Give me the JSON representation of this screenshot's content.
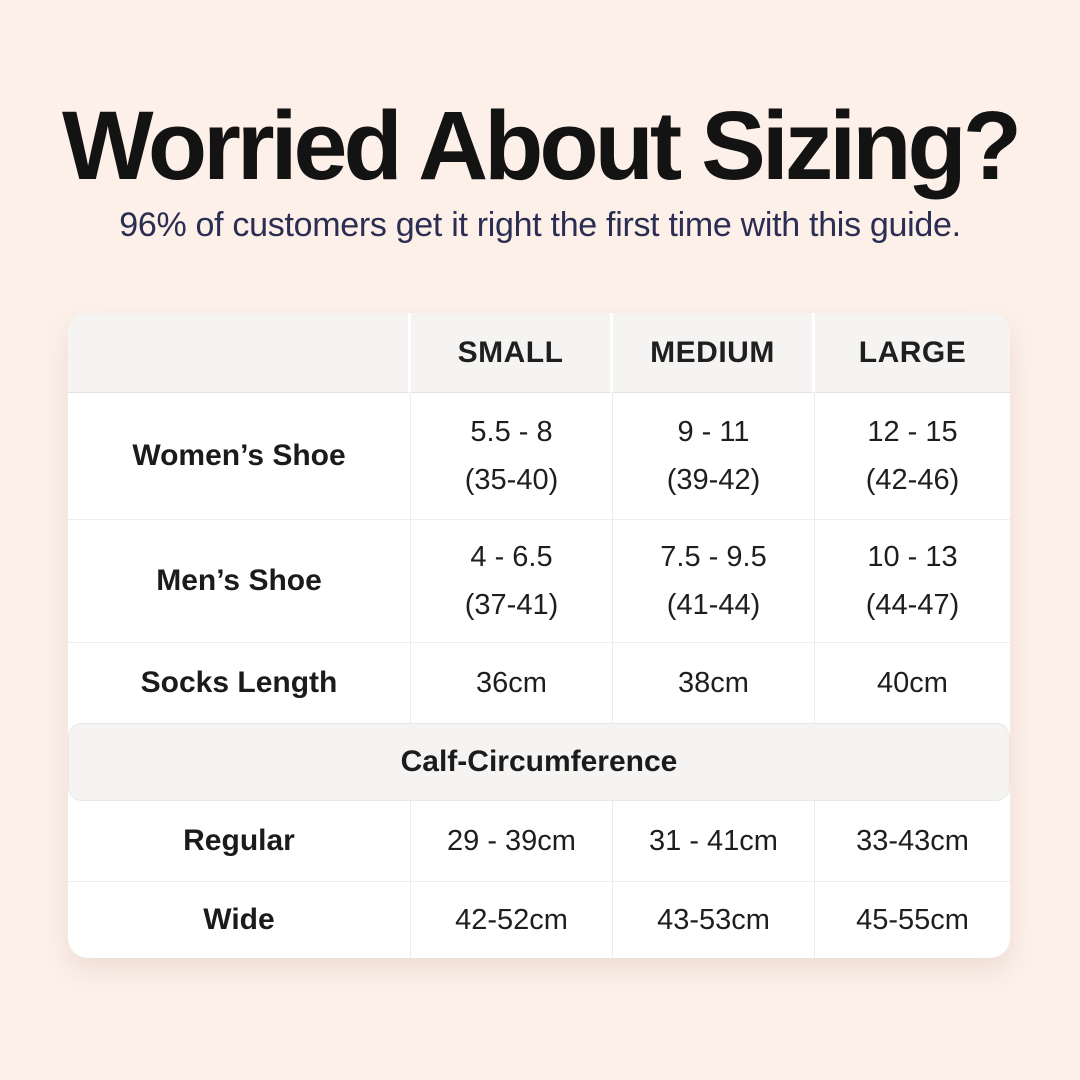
{
  "canvas": {
    "background_color": "#fcf0e9",
    "card_background_color": "#ffffff",
    "band_background_color": "#f5f4f2",
    "title_color": "#131313",
    "subtitle_color": "#2b2e52"
  },
  "header": {
    "title": "Worried About Sizing?",
    "subtitle": "96% of customers get it right the first time with this guide."
  },
  "chart_data": {
    "type": "table",
    "title": "Worried About Sizing?",
    "subtitle": "96% of customers get it right the first time with this guide.",
    "columns": [
      "",
      "SMALL",
      "MEDIUM",
      "LARGE"
    ],
    "rows": [
      {
        "label": "Women’s Shoe",
        "cells": [
          {
            "main": "5.5 - 8",
            "sub": "(35-40)"
          },
          {
            "main": "9 - 11",
            "sub": "(39-42)"
          },
          {
            "main": "12 - 15",
            "sub": "(42-46)"
          }
        ]
      },
      {
        "label": "Men’s Shoe",
        "cells": [
          {
            "main": "4 - 6.5",
            "sub": "(37-41)"
          },
          {
            "main": "7.5 - 9.5",
            "sub": "(41-44)"
          },
          {
            "main": "10 - 13",
            "sub": "(44-47)"
          }
        ]
      },
      {
        "label": "Socks Length",
        "cells": [
          {
            "main": "36cm"
          },
          {
            "main": "38cm"
          },
          {
            "main": "40cm"
          }
        ]
      }
    ],
    "section_header": "Calf-Circumference",
    "section_rows": [
      {
        "label": "Regular",
        "cells": [
          {
            "main": "29 - 39cm"
          },
          {
            "main": "31 - 41cm"
          },
          {
            "main": "33-43cm"
          }
        ]
      },
      {
        "label": "Wide",
        "cells": [
          {
            "main": "42-52cm"
          },
          {
            "main": "43-53cm"
          },
          {
            "main": "45-55cm"
          }
        ]
      }
    ]
  }
}
